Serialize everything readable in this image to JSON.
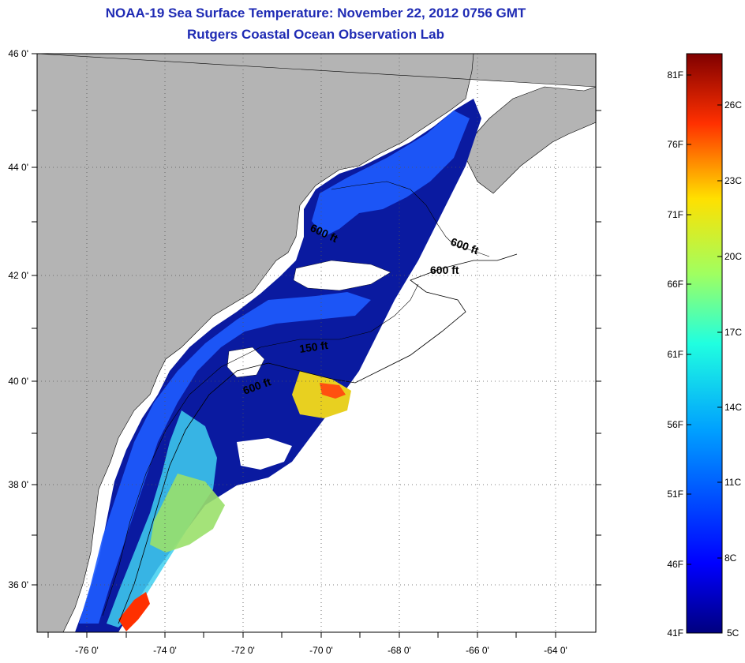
{
  "title": {
    "line1": "NOAA-19 Sea Surface Temperature:  November 22, 2012 0756 GMT",
    "line2": "Rutgers Coastal Ocean Observation Lab"
  },
  "map": {
    "lat_labels": [
      "46 0'",
      "44 0'",
      "42 0'",
      "40 0'",
      "38 0'",
      "36 0'"
    ],
    "lon_labels": [
      "-76 0'",
      "-74 0'",
      "-72 0'",
      "-70 0'",
      "-68 0'",
      "-66 0'",
      "-64 0'"
    ],
    "contour_labels": [
      "600 ft",
      "600 ft",
      "600 ft",
      "150 ft",
      "600 ft"
    ],
    "colors": {
      "land": "#b4b4b4",
      "ocean_nodata": "#ffffff",
      "cold": "#00008c",
      "cool": "#0050ff",
      "mild": "#00c8ff",
      "warm": "#a0e000",
      "hot": "#ff2000"
    }
  },
  "colorbar": {
    "fahrenheit_labels": [
      "81F",
      "76F",
      "71F",
      "66F",
      "61F",
      "56F",
      "51F",
      "46F",
      "41F"
    ],
    "celsius_labels": [
      "26C",
      "23C",
      "20C",
      "17C",
      "14C",
      "11C",
      "8C",
      "5C"
    ],
    "range_f": [
      41,
      81
    ],
    "range_c": [
      5,
      27
    ]
  }
}
